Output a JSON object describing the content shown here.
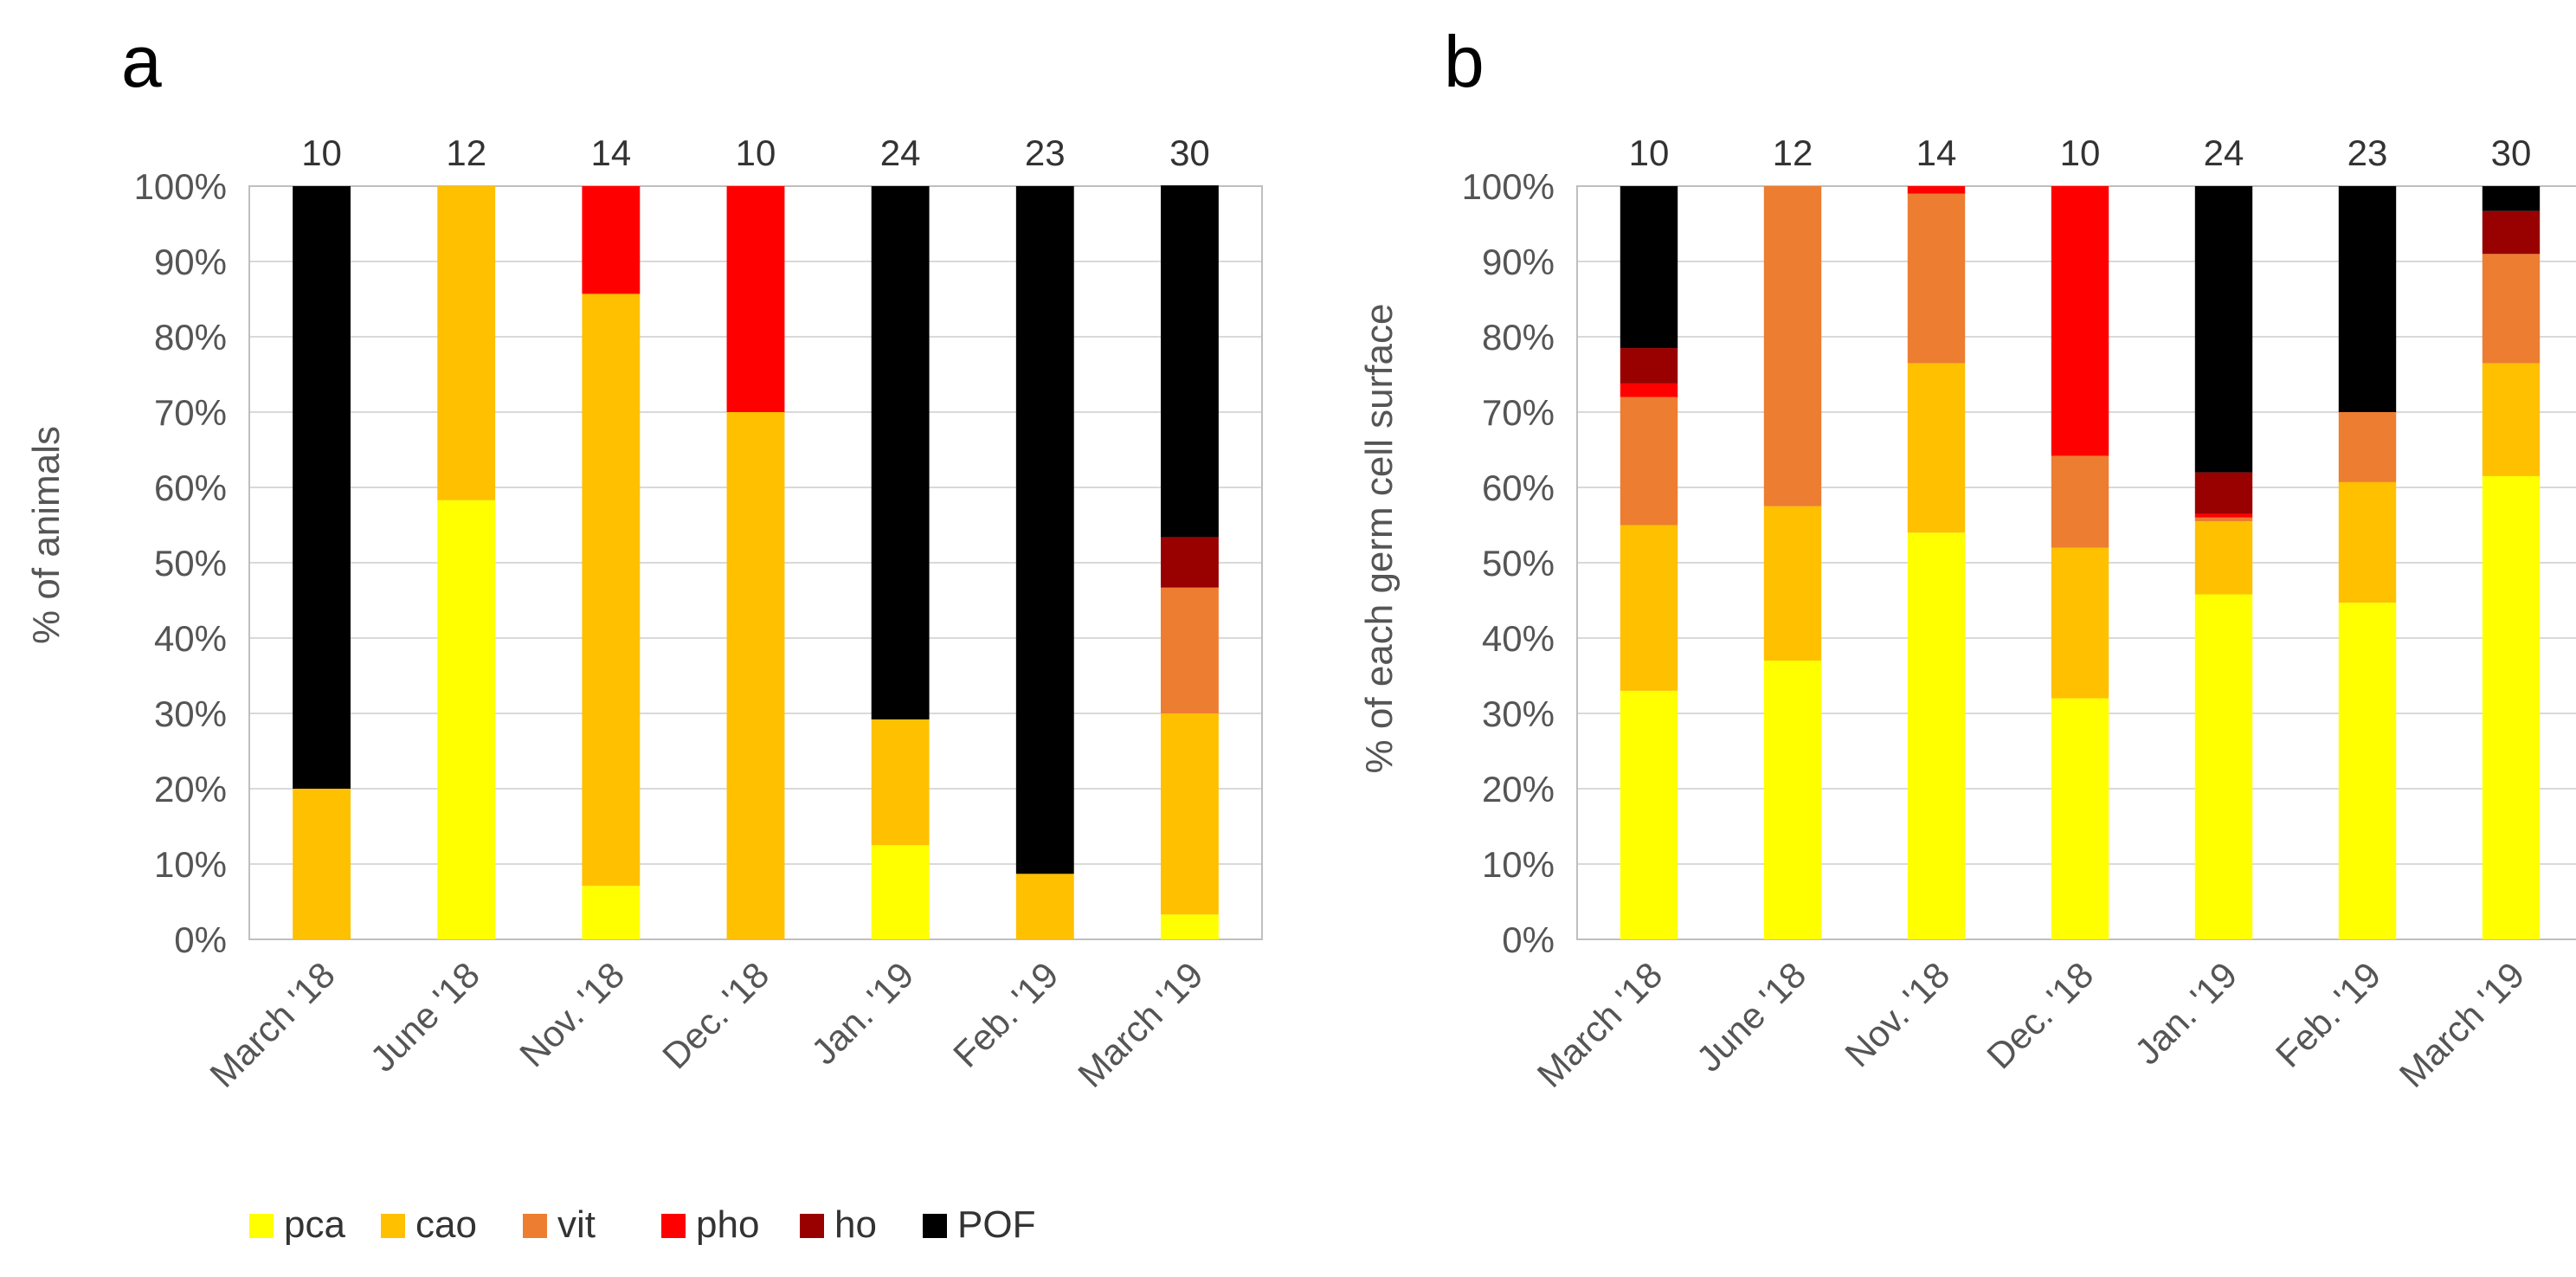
{
  "series_keys": [
    "pca",
    "cao",
    "vit",
    "pho",
    "ho",
    "POF"
  ],
  "colors": {
    "pca": "#ffff00",
    "cao": "#ffc000",
    "vit": "#ed7d31",
    "pho": "#ff0000",
    "ho": "#990000",
    "POF": "#000000"
  },
  "legend": [
    "pca",
    "cao",
    "vit",
    "pho",
    "ho",
    "POF"
  ],
  "chart_data": [
    {
      "type": "bar",
      "stacked": true,
      "panel": "a",
      "title": "",
      "ylabel": "% of animals",
      "xlabel": "",
      "ylim": [
        0,
        100
      ],
      "yticks": [
        "0%",
        "10%",
        "20%",
        "30%",
        "40%",
        "50%",
        "60%",
        "70%",
        "80%",
        "90%",
        "100%"
      ],
      "categories": [
        "March '18",
        "June '18",
        "Nov. '18",
        "Dec. '18",
        "Jan. '19",
        "Feb. '19",
        "March '19"
      ],
      "counts": [
        "10",
        "12",
        "14",
        "10",
        "24",
        "23",
        "30"
      ],
      "series": [
        {
          "name": "pca",
          "values": [
            0,
            58.3,
            7.1,
            0,
            12.5,
            0,
            3.3
          ]
        },
        {
          "name": "cao",
          "values": [
            20,
            41.7,
            78.6,
            70,
            16.7,
            8.7,
            26.7
          ]
        },
        {
          "name": "vit",
          "values": [
            0,
            0,
            0,
            0,
            0,
            0,
            16.7
          ]
        },
        {
          "name": "pho",
          "values": [
            0,
            0,
            14.3,
            30,
            0,
            0,
            0
          ]
        },
        {
          "name": "ho",
          "values": [
            0,
            0,
            0,
            0,
            0,
            0,
            6.7
          ]
        },
        {
          "name": "POF",
          "values": [
            80,
            0,
            0,
            0,
            70.8,
            91.3,
            46.7
          ]
        }
      ],
      "grid": true
    },
    {
      "type": "bar",
      "stacked": true,
      "panel": "b",
      "title": "",
      "ylabel": "% of each germ cell surface",
      "xlabel": "",
      "ylim": [
        0,
        100
      ],
      "yticks": [
        "0%",
        "10%",
        "20%",
        "30%",
        "40%",
        "50%",
        "60%",
        "70%",
        "80%",
        "90%",
        "100%"
      ],
      "categories": [
        "March '18",
        "June '18",
        "Nov. '18",
        "Dec. '18",
        "Jan. '19",
        "Feb. '19",
        "March '19"
      ],
      "counts": [
        "10",
        "12",
        "14",
        "10",
        "24",
        "23",
        "30"
      ],
      "series": [
        {
          "name": "pca",
          "values": [
            33,
            37,
            54,
            32,
            45.8,
            44.7,
            61.5
          ]
        },
        {
          "name": "cao",
          "values": [
            22,
            20.5,
            22.5,
            20,
            9.7,
            16,
            15
          ]
        },
        {
          "name": "vit",
          "values": [
            17,
            42.5,
            22.5,
            12.2,
            0.5,
            9.3,
            14.5
          ]
        },
        {
          "name": "pho",
          "values": [
            1.8,
            0,
            1,
            35.8,
            0.5,
            0,
            0
          ]
        },
        {
          "name": "ho",
          "values": [
            4.7,
            0,
            0,
            0,
            5.5,
            0,
            5.7
          ]
        },
        {
          "name": "POF",
          "values": [
            21.5,
            0,
            0,
            0,
            38,
            30,
            3.3
          ]
        }
      ],
      "grid": true
    }
  ]
}
